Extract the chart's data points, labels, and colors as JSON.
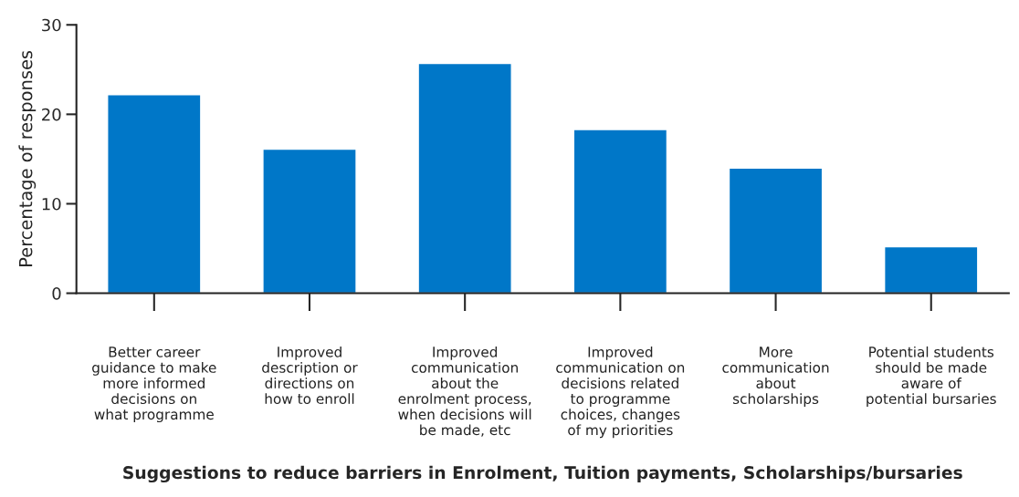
{
  "chart_data": {
    "type": "bar",
    "categories": [
      "Better career\nguidance to make\nmore informed\ndecisions on\nwhat programme",
      "Improved\ndescription or\ndirections on\nhow to enroll",
      "Improved\ncommunication\nabout the\nenrolment process,\nwhen decisions will\nbe made, etc",
      "Improved\ncommunication on\ndecisions related\nto programme\nchoices, changes\nof my priorities",
      "More\ncommunication\nabout\nscholarships",
      "Potential students\nshould be made\naware of\npotential bursaries"
    ],
    "values": [
      22.2,
      16.1,
      25.7,
      18.3,
      14.0,
      5.2
    ],
    "color": "#0077c8",
    "xlabel": "Suggestions to reduce barriers in Enrolment, Tuition payments, Scholarships/bursaries",
    "ylabel": "Percentage of responses",
    "ylim": [
      0,
      30
    ],
    "yticks": [
      0,
      10,
      20,
      30
    ],
    "grid": false,
    "legend": false
  }
}
